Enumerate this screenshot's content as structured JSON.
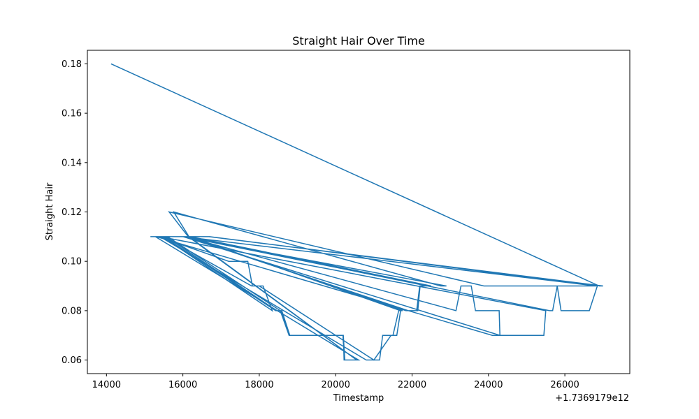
{
  "chart_data": {
    "type": "line",
    "title": "Straight Hair Over Time",
    "xlabel": "Timestamp",
    "ylabel": "Straight Hair",
    "x_offset_label": "+1.7369179e12",
    "xlim": [
      13500,
      27700
    ],
    "ylim": [
      0.0545,
      0.1855
    ],
    "x_ticks": [
      14000,
      16000,
      18000,
      20000,
      22000,
      24000,
      26000
    ],
    "x_tick_labels": [
      "14000",
      "16000",
      "18000",
      "20000",
      "22000",
      "24000",
      "26000"
    ],
    "y_ticks": [
      0.06,
      0.08,
      0.1,
      0.12,
      0.14,
      0.16,
      0.18
    ],
    "y_tick_labels": [
      "0.06",
      "0.08",
      "0.10",
      "0.12",
      "0.14",
      "0.16",
      "0.18"
    ],
    "grid": false,
    "line_color": "#1f77b4",
    "series": [
      {
        "x": [
          14120,
          26900,
          27000,
          16680,
          16300,
          15150,
          15370,
          17200,
          17600,
          17700,
          17820,
          18100,
          18340,
          15460,
          15600,
          18550,
          18780,
          20190,
          20230,
          20550,
          16140,
          15640,
          23880,
          26820,
          16000,
          15490,
          18430,
          18570,
          18800,
          20200,
          20240,
          20600,
          15280,
          15550,
          18460,
          18590,
          18800,
          19500,
          20000,
          20200,
          20220,
          20550,
          16160,
          15760,
          22750,
          22900,
          16000,
          15500,
          17800,
          18000,
          21000,
          21450,
          21600,
          21700,
          16200,
          16100,
          21840,
          22150,
          22210,
          22420,
          22500,
          16200,
          16080,
          21900,
          22120,
          22200,
          22400,
          16060,
          23150,
          23280,
          23550,
          23660,
          24000,
          24280,
          24300,
          16000,
          15400,
          20800,
          21150,
          21230,
          21500,
          21650,
          21750,
          16180,
          16030,
          25600,
          25680,
          25800,
          25900,
          26640,
          26850,
          16700,
          15300,
          24100,
          24300,
          24420,
          25450,
          25500,
          15400
        ],
        "y": [
          0.18,
          0.09,
          0.09,
          0.11,
          0.11,
          0.11,
          0.11,
          0.1,
          0.1,
          0.1,
          0.09,
          0.09,
          0.08,
          0.11,
          0.11,
          0.08,
          0.07,
          0.07,
          0.06,
          0.06,
          0.11,
          0.12,
          0.09,
          0.09,
          0.11,
          0.11,
          0.08,
          0.08,
          0.07,
          0.07,
          0.06,
          0.06,
          0.11,
          0.11,
          0.08,
          0.08,
          0.07,
          0.07,
          0.07,
          0.07,
          0.06,
          0.06,
          0.11,
          0.12,
          0.09,
          0.09,
          0.11,
          0.11,
          0.09,
          0.09,
          0.06,
          0.07,
          0.07,
          0.08,
          0.11,
          0.11,
          0.08,
          0.08,
          0.09,
          0.09,
          0.09,
          0.11,
          0.11,
          0.08,
          0.08,
          0.09,
          0.09,
          0.11,
          0.08,
          0.09,
          0.09,
          0.08,
          0.08,
          0.08,
          0.07,
          0.11,
          0.11,
          0.06,
          0.06,
          0.07,
          0.07,
          0.08,
          0.08,
          0.11,
          0.11,
          0.08,
          0.08,
          0.09,
          0.08,
          0.08,
          0.09,
          0.11,
          0.11,
          0.07,
          0.07,
          0.07,
          0.07,
          0.08,
          0.11
        ]
      }
    ]
  }
}
